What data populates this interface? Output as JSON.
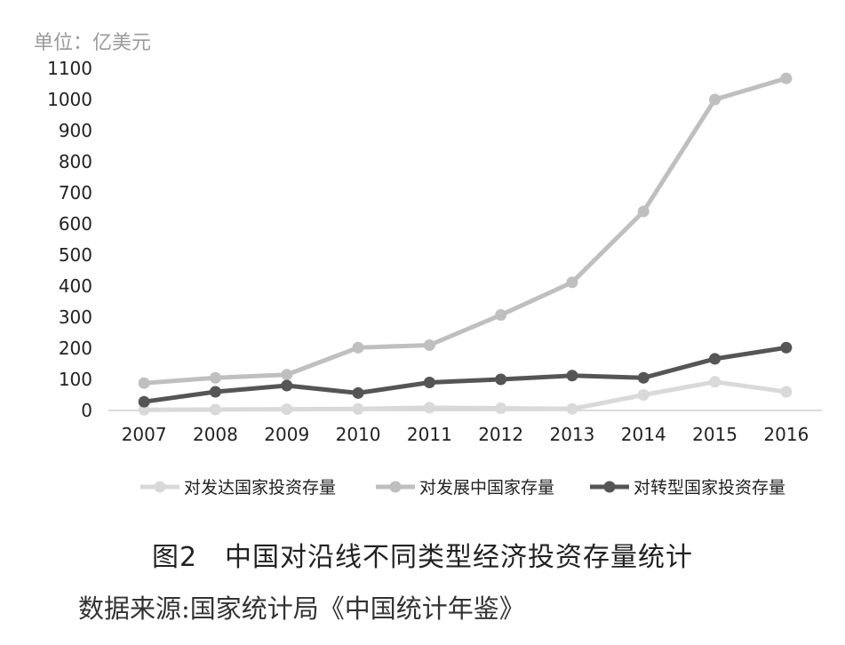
{
  "figure": {
    "title": "图2　中国对沿线不同类型经济投资存量统计",
    "source": "数据来源:国家统计局《中国统计年鉴》"
  },
  "chart_data": {
    "type": "line",
    "unit_label": "单位：亿美元",
    "x": [
      "2007",
      "2008",
      "2009",
      "2010",
      "2011",
      "2012",
      "2013",
      "2014",
      "2015",
      "2016"
    ],
    "ylim": [
      0,
      1100
    ],
    "yticks": [
      0,
      100,
      200,
      300,
      400,
      500,
      600,
      700,
      800,
      900,
      1000,
      1100
    ],
    "grid": false,
    "legend_position": "bottom",
    "series": [
      {
        "name": "对发达国家投资存量",
        "color": "#d9d9d9",
        "values": [
          2,
          3,
          4,
          5,
          9,
          7,
          5,
          50,
          92,
          60
        ]
      },
      {
        "name": "对发展中国家存量",
        "color": "#bfbfbf",
        "values": [
          88,
          105,
          115,
          202,
          210,
          307,
          412,
          640,
          1000,
          1068
        ]
      },
      {
        "name": "对转型国家投资存量",
        "color": "#555555",
        "values": [
          28,
          60,
          80,
          56,
          90,
          100,
          112,
          105,
          166,
          202
        ]
      }
    ]
  }
}
